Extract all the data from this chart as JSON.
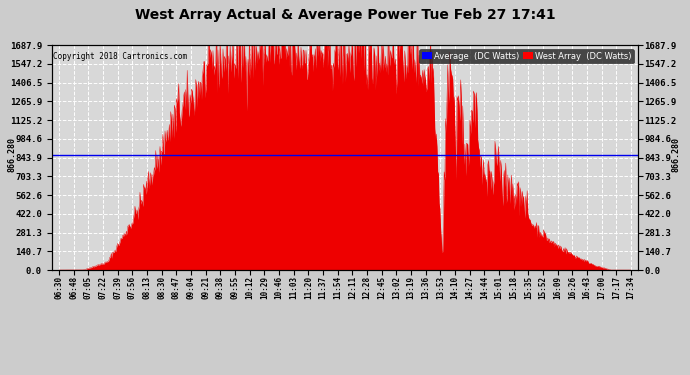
{
  "title": "West Array Actual & Average Power Tue Feb 27 17:41",
  "copyright": "Copyright 2018 Cartronics.com",
  "legend_labels": [
    "Average  (DC Watts)",
    "West Array  (DC Watts)"
  ],
  "legend_colors": [
    "#0000ff",
    "#ff0000"
  ],
  "avg_value": 866.28,
  "yticks": [
    0.0,
    140.7,
    281.3,
    422.0,
    562.6,
    703.3,
    843.9,
    984.6,
    1125.2,
    1265.9,
    1406.5,
    1547.2,
    1687.9
  ],
  "ymax": 1687.9,
  "bg_color": "#d8d8d8",
  "grid_color": "#ffffff",
  "fill_color": "#ee0000",
  "avg_line_color": "#0000ee",
  "xtick_labels": [
    "06:30",
    "06:48",
    "07:05",
    "07:22",
    "07:39",
    "07:56",
    "08:13",
    "08:30",
    "08:47",
    "09:04",
    "09:21",
    "09:38",
    "09:55",
    "10:12",
    "10:29",
    "10:46",
    "11:03",
    "11:20",
    "11:37",
    "11:54",
    "12:11",
    "12:28",
    "12:45",
    "13:02",
    "13:19",
    "13:36",
    "13:53",
    "14:10",
    "14:27",
    "14:44",
    "15:01",
    "15:18",
    "15:35",
    "15:52",
    "16:09",
    "16:26",
    "16:43",
    "17:00",
    "17:17",
    "17:34"
  ],
  "figwidth": 6.9,
  "figheight": 3.75,
  "dpi": 100
}
